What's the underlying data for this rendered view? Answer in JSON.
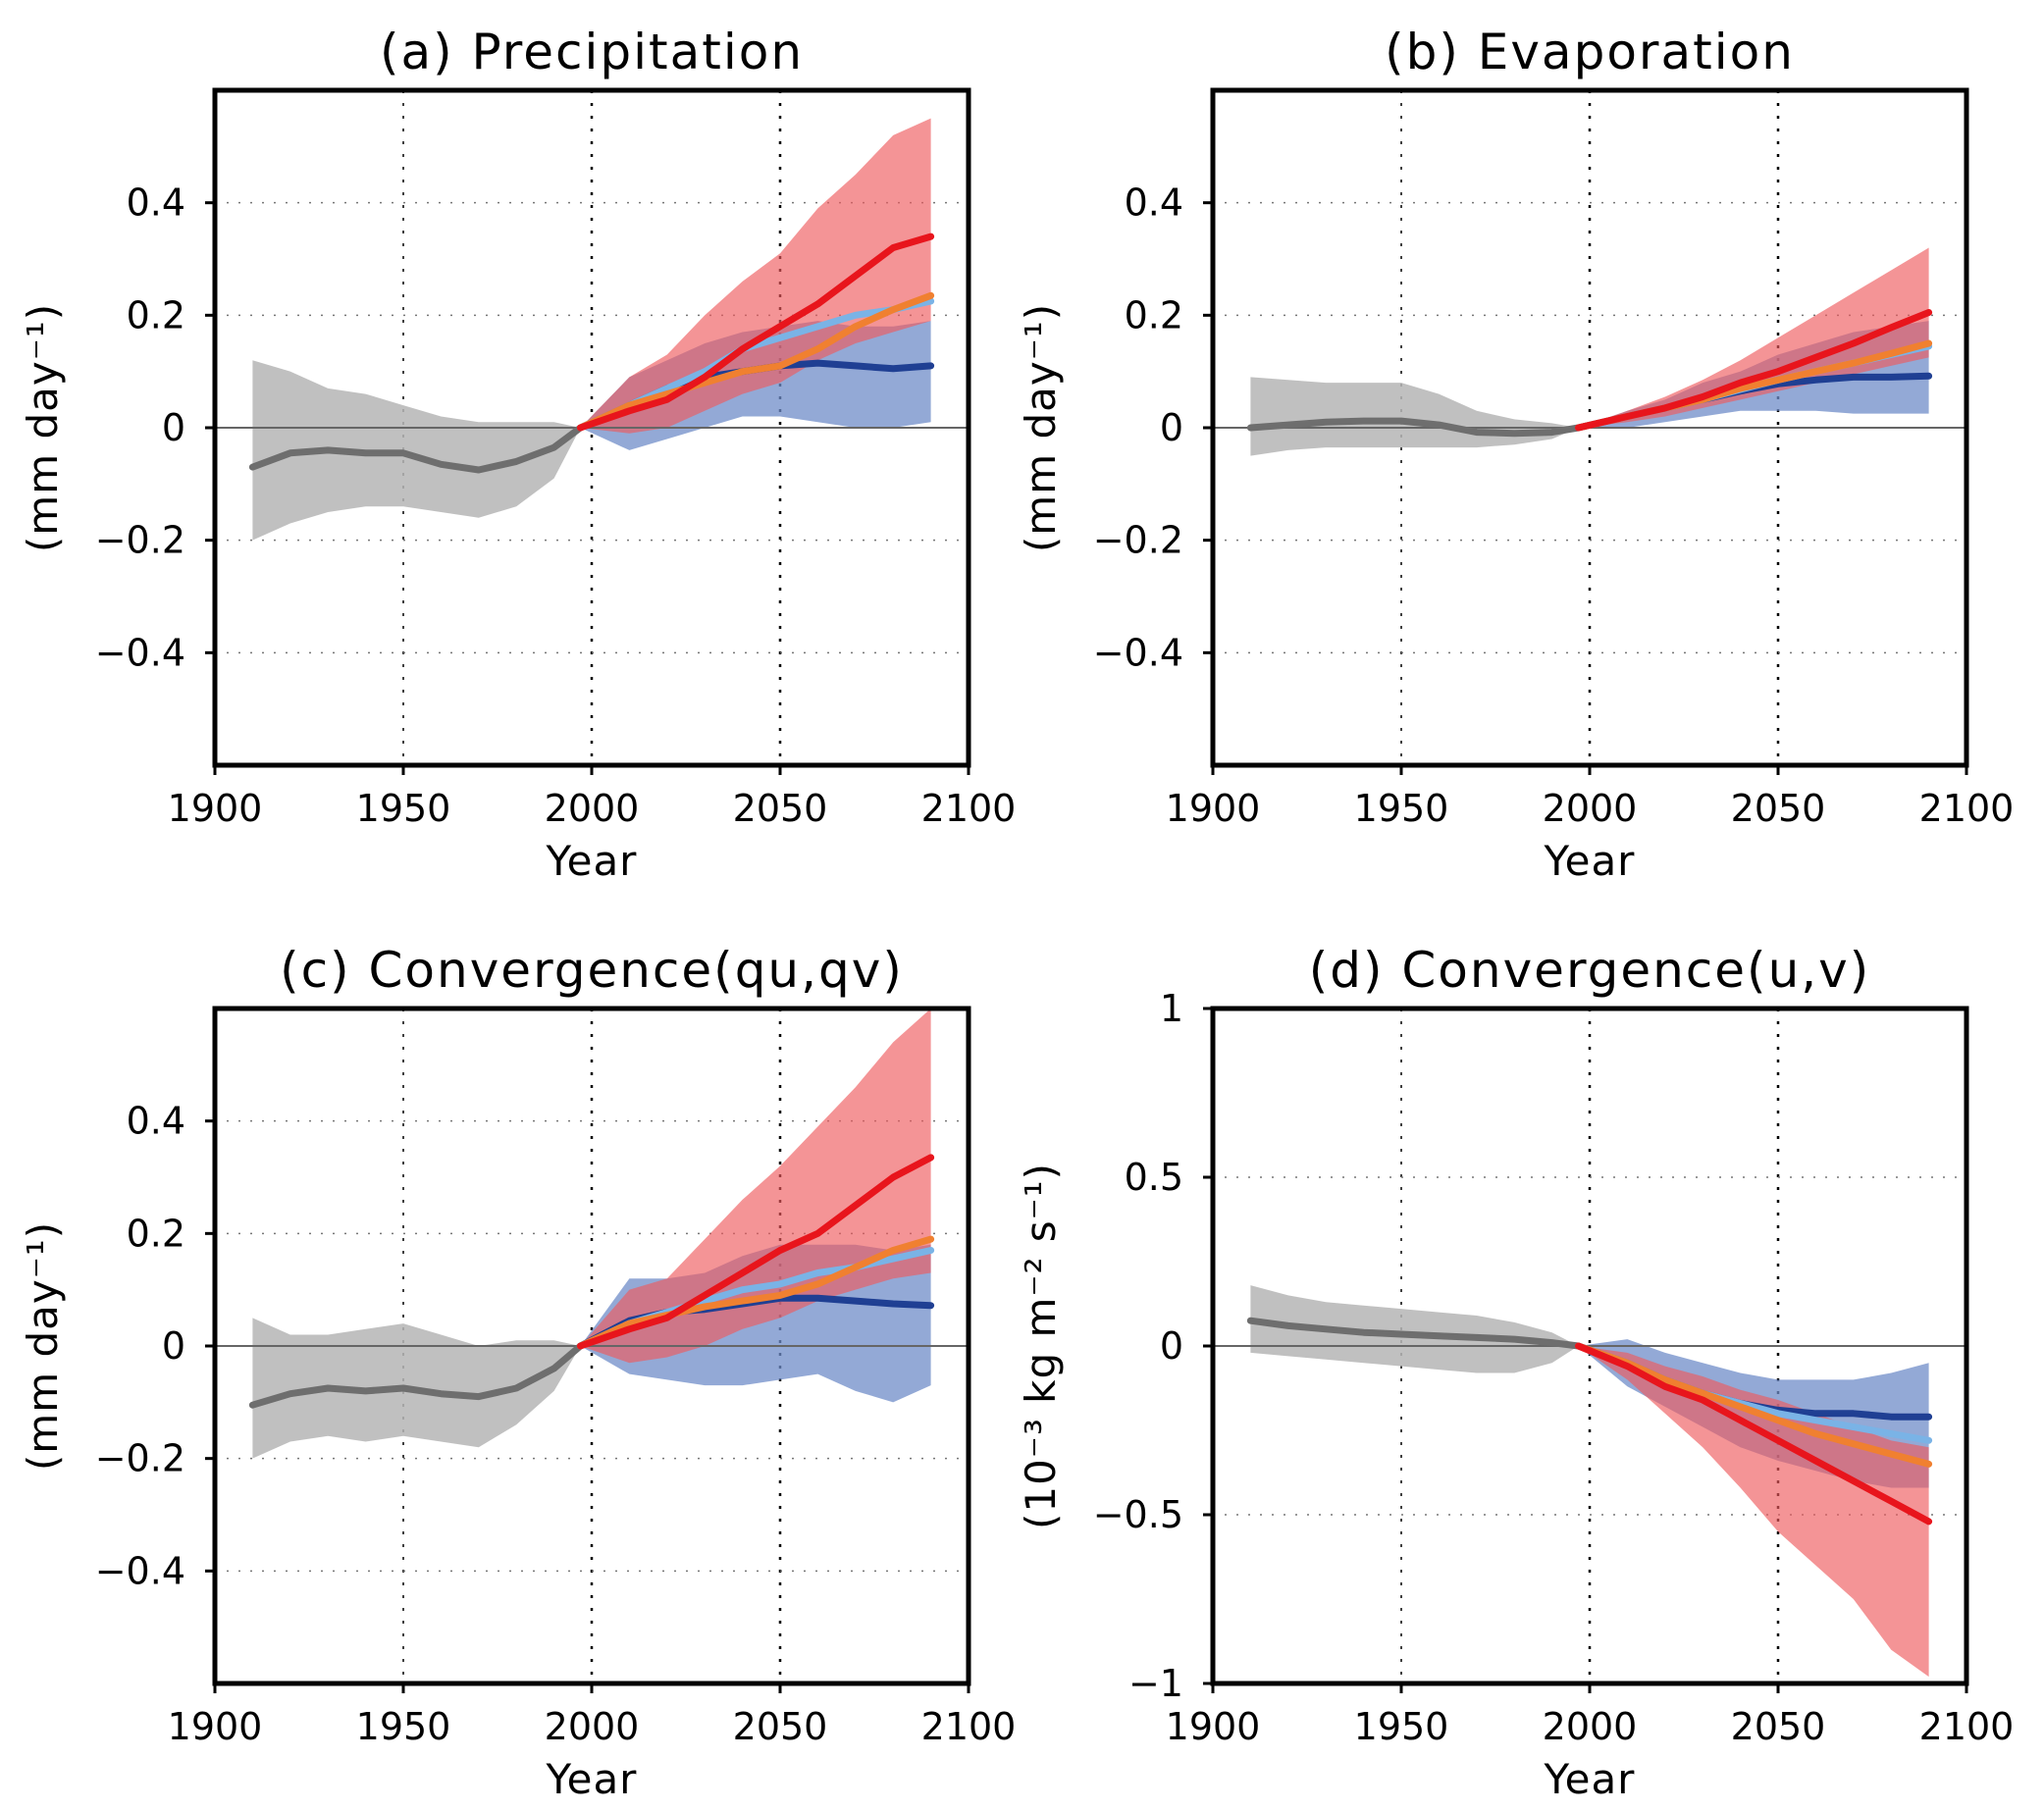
{
  "colors": {
    "historical": "#6e6e6e",
    "historical_band": "#b5b5b5",
    "rcp26": "#1f3f93",
    "rcp45": "#7ab3e6",
    "rcp60": "#f08030",
    "rcp85": "#e8151c",
    "band_blue": "#6f8cc8",
    "band_red": "#ee5a5e"
  },
  "chart_data": [
    {
      "type": "line",
      "title": "(a) Precipitation",
      "xlabel": "Year",
      "ylabel": "(mm day⁻¹)",
      "xlim": [
        1900,
        2100
      ],
      "ylim": [
        -0.6,
        0.6
      ],
      "xticks": [
        1900,
        1950,
        2000,
        2050,
        2100
      ],
      "yticks": [
        -0.4,
        -0.2,
        0,
        0.2,
        0.4
      ],
      "ytick_labels": [
        "−0.4",
        "−0.2",
        "0",
        "0.2",
        "0.4"
      ],
      "grid": "dotted",
      "series": [
        {
          "x": [
            1910,
            1920,
            1930,
            1940,
            1950,
            1960,
            1970,
            1980,
            1990,
            1997
          ],
          "y": [
            -0.07,
            -0.045,
            -0.04,
            -0.045,
            -0.045,
            -0.065,
            -0.075,
            -0.06,
            -0.035,
            0.0
          ],
          "lower": [
            -0.2,
            -0.17,
            -0.15,
            -0.14,
            -0.14,
            -0.15,
            -0.16,
            -0.14,
            -0.09,
            0.0
          ],
          "upper": [
            0.12,
            0.1,
            0.07,
            0.06,
            0.04,
            0.02,
            0.01,
            0.01,
            0.01,
            0.0
          ],
          "color": "historical"
        },
        {
          "x": [
            1997,
            2010,
            2020,
            2030,
            2040,
            2050,
            2060,
            2070,
            2080,
            2090
          ],
          "y": [
            0.0,
            0.04,
            0.07,
            0.09,
            0.1,
            0.11,
            0.115,
            0.11,
            0.105,
            0.11
          ],
          "lower": [
            0.0,
            -0.04,
            -0.02,
            0.0,
            0.02,
            0.02,
            0.01,
            0.0,
            0.0,
            0.01
          ],
          "upper": [
            0.0,
            0.09,
            0.12,
            0.15,
            0.17,
            0.18,
            0.19,
            0.18,
            0.18,
            0.19
          ],
          "color": "rcp26"
        },
        {
          "x": [
            1997,
            2010,
            2020,
            2030,
            2040,
            2050,
            2060,
            2070,
            2080,
            2090
          ],
          "y": [
            0.0,
            0.04,
            0.07,
            0.1,
            0.14,
            0.16,
            0.18,
            0.2,
            0.21,
            0.225
          ],
          "color": "rcp45"
        },
        {
          "x": [
            1997,
            2010,
            2020,
            2030,
            2040,
            2050,
            2060,
            2070,
            2080,
            2090
          ],
          "y": [
            0.0,
            0.04,
            0.06,
            0.08,
            0.1,
            0.11,
            0.14,
            0.18,
            0.21,
            0.235
          ],
          "color": "rcp60"
        },
        {
          "x": [
            1997,
            2010,
            2020,
            2030,
            2040,
            2050,
            2060,
            2070,
            2080,
            2090
          ],
          "y": [
            0.0,
            0.03,
            0.05,
            0.09,
            0.14,
            0.18,
            0.22,
            0.27,
            0.32,
            0.34
          ],
          "lower": [
            0.0,
            -0.01,
            0.0,
            0.03,
            0.06,
            0.08,
            0.12,
            0.15,
            0.17,
            0.19
          ],
          "upper": [
            0.0,
            0.09,
            0.13,
            0.2,
            0.26,
            0.31,
            0.39,
            0.45,
            0.52,
            0.55
          ],
          "color": "rcp85"
        }
      ]
    },
    {
      "type": "line",
      "title": "(b) Evaporation",
      "xlabel": "Year",
      "ylabel": "(mm day⁻¹)",
      "xlim": [
        1900,
        2100
      ],
      "ylim": [
        -0.6,
        0.6
      ],
      "xticks": [
        1900,
        1950,
        2000,
        2050,
        2100
      ],
      "yticks": [
        -0.4,
        -0.2,
        0,
        0.2,
        0.4
      ],
      "ytick_labels": [
        "−0.4",
        "−0.2",
        "0",
        "0.2",
        "0.4"
      ],
      "grid": "dotted",
      "series": [
        {
          "x": [
            1910,
            1920,
            1930,
            1940,
            1950,
            1960,
            1970,
            1980,
            1990,
            1997
          ],
          "y": [
            0.0,
            0.005,
            0.01,
            0.012,
            0.012,
            0.005,
            -0.008,
            -0.01,
            -0.008,
            0.0
          ],
          "lower": [
            -0.05,
            -0.04,
            -0.035,
            -0.035,
            -0.035,
            -0.035,
            -0.035,
            -0.03,
            -0.02,
            0.0
          ],
          "upper": [
            0.09,
            0.085,
            0.08,
            0.08,
            0.08,
            0.06,
            0.03,
            0.015,
            0.008,
            0.0
          ],
          "color": "historical"
        },
        {
          "x": [
            1997,
            2010,
            2020,
            2030,
            2040,
            2050,
            2060,
            2070,
            2080,
            2090
          ],
          "y": [
            0.0,
            0.02,
            0.035,
            0.05,
            0.065,
            0.078,
            0.085,
            0.09,
            0.09,
            0.092
          ],
          "lower": [
            0.0,
            0.0,
            0.01,
            0.02,
            0.03,
            0.03,
            0.03,
            0.025,
            0.025,
            0.025
          ],
          "upper": [
            0.0,
            0.03,
            0.05,
            0.08,
            0.1,
            0.13,
            0.15,
            0.17,
            0.18,
            0.19
          ],
          "color": "rcp26"
        },
        {
          "x": [
            1997,
            2010,
            2020,
            2030,
            2040,
            2050,
            2060,
            2070,
            2080,
            2090
          ],
          "y": [
            0.0,
            0.02,
            0.035,
            0.05,
            0.068,
            0.085,
            0.1,
            0.115,
            0.13,
            0.145
          ],
          "color": "rcp45"
        },
        {
          "x": [
            1997,
            2010,
            2020,
            2030,
            2040,
            2050,
            2060,
            2070,
            2080,
            2090
          ],
          "y": [
            0.0,
            0.02,
            0.035,
            0.05,
            0.07,
            0.085,
            0.1,
            0.115,
            0.132,
            0.15
          ],
          "color": "rcp60"
        },
        {
          "x": [
            1997,
            2010,
            2020,
            2030,
            2040,
            2050,
            2060,
            2070,
            2080,
            2090
          ],
          "y": [
            0.0,
            0.02,
            0.035,
            0.055,
            0.08,
            0.1,
            0.125,
            0.15,
            0.178,
            0.205
          ],
          "lower": [
            0.0,
            0.01,
            0.02,
            0.035,
            0.05,
            0.065,
            0.08,
            0.095,
            0.11,
            0.125
          ],
          "upper": [
            0.0,
            0.03,
            0.055,
            0.085,
            0.12,
            0.16,
            0.2,
            0.24,
            0.28,
            0.32
          ],
          "color": "rcp85"
        }
      ]
    },
    {
      "type": "line",
      "title": "(c) Convergence(qu,qv)",
      "xlabel": "Year",
      "ylabel": "(mm day⁻¹)",
      "xlim": [
        1900,
        2100
      ],
      "ylim": [
        -0.6,
        0.6
      ],
      "xticks": [
        1900,
        1950,
        2000,
        2050,
        2100
      ],
      "yticks": [
        -0.4,
        -0.2,
        0,
        0.2,
        0.4
      ],
      "ytick_labels": [
        "−0.4",
        "−0.2",
        "0",
        "0.2",
        "0.4"
      ],
      "grid": "dotted",
      "series": [
        {
          "x": [
            1910,
            1920,
            1930,
            1940,
            1950,
            1960,
            1970,
            1980,
            1990,
            1997
          ],
          "y": [
            -0.105,
            -0.085,
            -0.075,
            -0.08,
            -0.075,
            -0.085,
            -0.09,
            -0.075,
            -0.04,
            0.0
          ],
          "lower": [
            -0.2,
            -0.17,
            -0.16,
            -0.17,
            -0.16,
            -0.17,
            -0.18,
            -0.14,
            -0.08,
            0.0
          ],
          "upper": [
            0.05,
            0.02,
            0.02,
            0.03,
            0.04,
            0.02,
            0.0,
            0.01,
            0.01,
            0.0
          ],
          "color": "historical"
        },
        {
          "x": [
            1997,
            2010,
            2020,
            2030,
            2040,
            2050,
            2060,
            2070,
            2080,
            2090
          ],
          "y": [
            0.0,
            0.045,
            0.06,
            0.065,
            0.075,
            0.085,
            0.085,
            0.08,
            0.075,
            0.072
          ],
          "lower": [
            0.0,
            -0.05,
            -0.06,
            -0.07,
            -0.07,
            -0.06,
            -0.05,
            -0.08,
            -0.1,
            -0.07
          ],
          "upper": [
            0.0,
            0.12,
            0.12,
            0.13,
            0.16,
            0.18,
            0.18,
            0.18,
            0.17,
            0.18
          ],
          "color": "rcp26"
        },
        {
          "x": [
            1997,
            2010,
            2020,
            2030,
            2040,
            2050,
            2060,
            2070,
            2080,
            2090
          ],
          "y": [
            0.0,
            0.04,
            0.06,
            0.08,
            0.1,
            0.11,
            0.13,
            0.14,
            0.155,
            0.17
          ],
          "color": "rcp45"
        },
        {
          "x": [
            1997,
            2010,
            2020,
            2030,
            2040,
            2050,
            2060,
            2070,
            2080,
            2090
          ],
          "y": [
            0.0,
            0.04,
            0.055,
            0.07,
            0.08,
            0.09,
            0.11,
            0.14,
            0.17,
            0.19
          ],
          "color": "rcp60"
        },
        {
          "x": [
            1997,
            2010,
            2020,
            2030,
            2040,
            2050,
            2060,
            2070,
            2080,
            2090
          ],
          "y": [
            0.0,
            0.03,
            0.05,
            0.09,
            0.13,
            0.17,
            0.2,
            0.25,
            0.3,
            0.335
          ],
          "lower": [
            0.0,
            -0.03,
            -0.02,
            0.0,
            0.03,
            0.05,
            0.08,
            0.1,
            0.12,
            0.13
          ],
          "upper": [
            0.0,
            0.1,
            0.12,
            0.19,
            0.26,
            0.32,
            0.39,
            0.46,
            0.54,
            0.6
          ],
          "color": "rcp85"
        }
      ]
    },
    {
      "type": "line",
      "title": "(d) Convergence(u,v)",
      "xlabel": "Year",
      "ylabel": "(10⁻³ kg m⁻² s⁻¹)",
      "xlim": [
        1900,
        2100
      ],
      "ylim": [
        -1,
        1
      ],
      "xticks": [
        1900,
        1950,
        2000,
        2050,
        2100
      ],
      "yticks": [
        -1,
        -0.5,
        0,
        0.5,
        1
      ],
      "ytick_labels": [
        "−1",
        "−0.5",
        "0",
        "0.5",
        "1"
      ],
      "grid": "dotted",
      "series": [
        {
          "x": [
            1910,
            1920,
            1930,
            1940,
            1950,
            1960,
            1970,
            1980,
            1990,
            1997
          ],
          "y": [
            0.075,
            0.06,
            0.05,
            0.04,
            0.035,
            0.03,
            0.025,
            0.02,
            0.01,
            0.0
          ],
          "lower": [
            -0.02,
            -0.03,
            -0.04,
            -0.05,
            -0.06,
            -0.07,
            -0.08,
            -0.08,
            -0.05,
            0.0
          ],
          "upper": [
            0.18,
            0.15,
            0.13,
            0.12,
            0.11,
            0.1,
            0.09,
            0.07,
            0.04,
            0.0
          ],
          "color": "historical"
        },
        {
          "x": [
            1997,
            2010,
            2020,
            2030,
            2040,
            2050,
            2060,
            2070,
            2080,
            2090
          ],
          "y": [
            0.0,
            -0.05,
            -0.1,
            -0.14,
            -0.17,
            -0.19,
            -0.2,
            -0.2,
            -0.21,
            -0.21
          ],
          "lower": [
            0.0,
            -0.12,
            -0.18,
            -0.24,
            -0.3,
            -0.34,
            -0.37,
            -0.4,
            -0.42,
            -0.42
          ],
          "upper": [
            0.0,
            0.02,
            -0.02,
            -0.05,
            -0.08,
            -0.1,
            -0.1,
            -0.1,
            -0.08,
            -0.05
          ],
          "color": "rcp26"
        },
        {
          "x": [
            1997,
            2010,
            2020,
            2030,
            2040,
            2050,
            2060,
            2070,
            2080,
            2090
          ],
          "y": [
            0.0,
            -0.05,
            -0.1,
            -0.14,
            -0.17,
            -0.2,
            -0.22,
            -0.24,
            -0.26,
            -0.28
          ],
          "color": "rcp45"
        },
        {
          "x": [
            1997,
            2010,
            2020,
            2030,
            2040,
            2050,
            2060,
            2070,
            2080,
            2090
          ],
          "y": [
            0.0,
            -0.05,
            -0.1,
            -0.14,
            -0.18,
            -0.22,
            -0.26,
            -0.29,
            -0.32,
            -0.35
          ],
          "color": "rcp60"
        },
        {
          "x": [
            1997,
            2010,
            2020,
            2030,
            2040,
            2050,
            2060,
            2070,
            2080,
            2090
          ],
          "y": [
            0.0,
            -0.06,
            -0.12,
            -0.16,
            -0.22,
            -0.28,
            -0.34,
            -0.4,
            -0.46,
            -0.52
          ],
          "lower": [
            0.0,
            -0.1,
            -0.2,
            -0.3,
            -0.42,
            -0.55,
            -0.65,
            -0.75,
            -0.9,
            -0.98
          ],
          "upper": [
            0.0,
            -0.02,
            -0.06,
            -0.09,
            -0.13,
            -0.16,
            -0.2,
            -0.24,
            -0.28,
            -0.3
          ],
          "color": "rcp85"
        }
      ]
    }
  ]
}
